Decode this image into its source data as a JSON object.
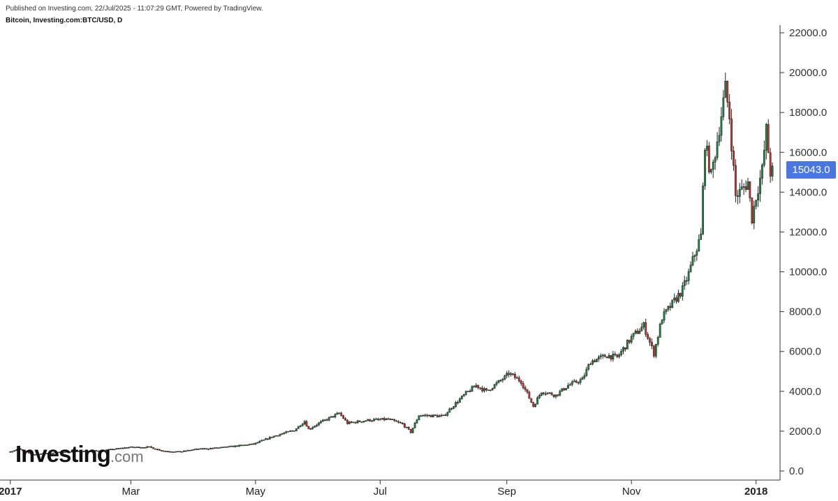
{
  "header": {
    "published": "Published on Investing.com, 22/Jul/2025 - 11:07:29 GMT, Powered by TradingView.",
    "symbol": "Bitcoin, Investing.com:BTC/USD, D"
  },
  "price_tag": "15043.0",
  "logo": {
    "word": "Investing",
    "domain": ".com"
  },
  "colors": {
    "up": "#1e8a43",
    "down": "#d8302a",
    "wick": "#222222",
    "price_tag": "#4a76e2",
    "axis": "#333333"
  },
  "chart_data": {
    "type": "candlestick",
    "title": "Bitcoin, Investing.com:BTC/USD, D",
    "interval": "D",
    "y_ticks": [
      "0.0",
      "2000.0",
      "4000.0",
      "6000.0",
      "8000.0",
      "10000.0",
      "12000.0",
      "14000.0",
      "16000.0",
      "18000.0",
      "20000.0",
      "22000.0"
    ],
    "x_ticks": [
      {
        "label": "2017",
        "bold": true,
        "date": "2017-01-01"
      },
      {
        "label": "Mar",
        "bold": false,
        "date": "2017-03-01"
      },
      {
        "label": "May",
        "bold": false,
        "date": "2017-05-01"
      },
      {
        "label": "Jul",
        "bold": false,
        "date": "2017-07-01"
      },
      {
        "label": "Sep",
        "bold": false,
        "date": "2017-09-01"
      },
      {
        "label": "Nov",
        "bold": false,
        "date": "2017-11-01"
      },
      {
        "label": "2018",
        "bold": true,
        "date": "2018-01-01"
      }
    ],
    "ylim": [
      0,
      22000
    ],
    "xlim": [
      "2016-12-29",
      "2018-01-10"
    ],
    "last_price": 15043.0,
    "close_anchors": [
      [
        "2017-01-01",
        970
      ],
      [
        "2017-01-05",
        1100
      ],
      [
        "2017-01-12",
        820
      ],
      [
        "2017-01-20",
        900
      ],
      [
        "2017-02-01",
        980
      ],
      [
        "2017-02-15",
        1020
      ],
      [
        "2017-02-28",
        1190
      ],
      [
        "2017-03-10",
        1200
      ],
      [
        "2017-03-17",
        1000
      ],
      [
        "2017-03-25",
        960
      ],
      [
        "2017-04-01",
        1080
      ],
      [
        "2017-04-15",
        1180
      ],
      [
        "2017-04-30",
        1350
      ],
      [
        "2017-05-10",
        1750
      ],
      [
        "2017-05-20",
        2050
      ],
      [
        "2017-05-25",
        2500
      ],
      [
        "2017-05-27",
        2100
      ],
      [
        "2017-06-01",
        2400
      ],
      [
        "2017-06-11",
        2900
      ],
      [
        "2017-06-15",
        2400
      ],
      [
        "2017-06-25",
        2550
      ],
      [
        "2017-07-05",
        2600
      ],
      [
        "2017-07-12",
        2350
      ],
      [
        "2017-07-16",
        1950
      ],
      [
        "2017-07-20",
        2800
      ],
      [
        "2017-08-01",
        2750
      ],
      [
        "2017-08-05",
        3200
      ],
      [
        "2017-08-12",
        3900
      ],
      [
        "2017-08-17",
        4300
      ],
      [
        "2017-08-22",
        4000
      ],
      [
        "2017-08-31",
        4700
      ],
      [
        "2017-09-02",
        4900
      ],
      [
        "2017-09-08",
        4500
      ],
      [
        "2017-09-14",
        3250
      ],
      [
        "2017-09-18",
        4000
      ],
      [
        "2017-09-25",
        3800
      ],
      [
        "2017-10-01",
        4300
      ],
      [
        "2017-10-08",
        4600
      ],
      [
        "2017-10-12",
        5500
      ],
      [
        "2017-10-20",
        5800
      ],
      [
        "2017-10-25",
        5700
      ],
      [
        "2017-11-01",
        6700
      ],
      [
        "2017-11-07",
        7300
      ],
      [
        "2017-11-12",
        5900
      ],
      [
        "2017-11-16",
        7700
      ],
      [
        "2017-11-26",
        9100
      ],
      [
        "2017-11-29",
        9900
      ],
      [
        "2017-12-02",
        10900
      ],
      [
        "2017-12-05",
        11800
      ],
      [
        "2017-12-07",
        16500
      ],
      [
        "2017-12-10",
        14800
      ],
      [
        "2017-12-13",
        16600
      ],
      [
        "2017-12-17",
        19200
      ],
      [
        "2017-12-19",
        17800
      ],
      [
        "2017-12-22",
        13800
      ],
      [
        "2017-12-24",
        14000
      ],
      [
        "2017-12-28",
        14500
      ],
      [
        "2017-12-30",
        12700
      ],
      [
        "2018-01-01",
        13800
      ],
      [
        "2018-01-04",
        15100
      ],
      [
        "2018-01-06",
        17100
      ],
      [
        "2018-01-08",
        15000
      ],
      [
        "2018-01-09",
        15043
      ]
    ]
  }
}
